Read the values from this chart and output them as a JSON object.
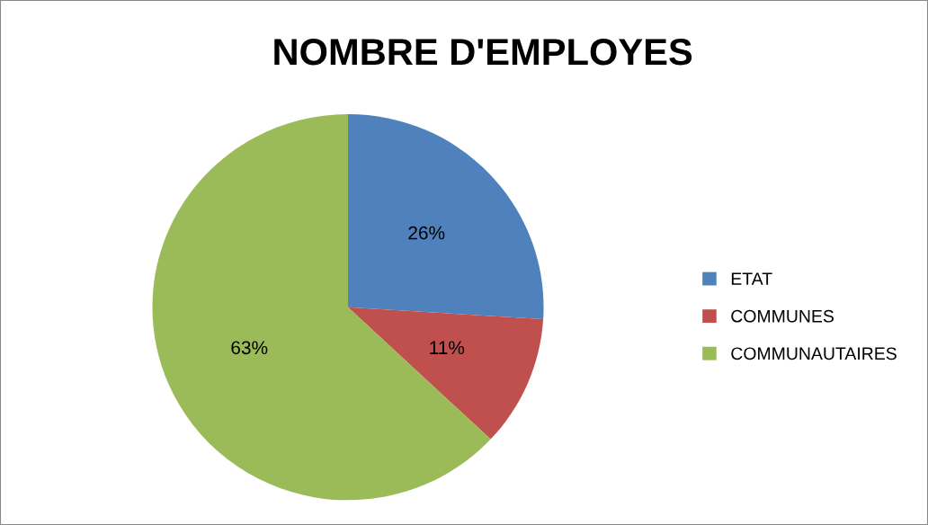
{
  "chart_data": {
    "type": "pie",
    "title": "NOMBRE D'EMPLOYES",
    "categories": [
      "ETAT",
      "COMMUNES",
      "COMMUNAUTAIRES"
    ],
    "values": [
      26,
      11,
      63
    ],
    "colors": [
      "#4f81bd",
      "#c0504d",
      "#9bbb59"
    ],
    "value_labels": [
      "26%",
      "11%",
      "63%"
    ],
    "legend": "right"
  }
}
